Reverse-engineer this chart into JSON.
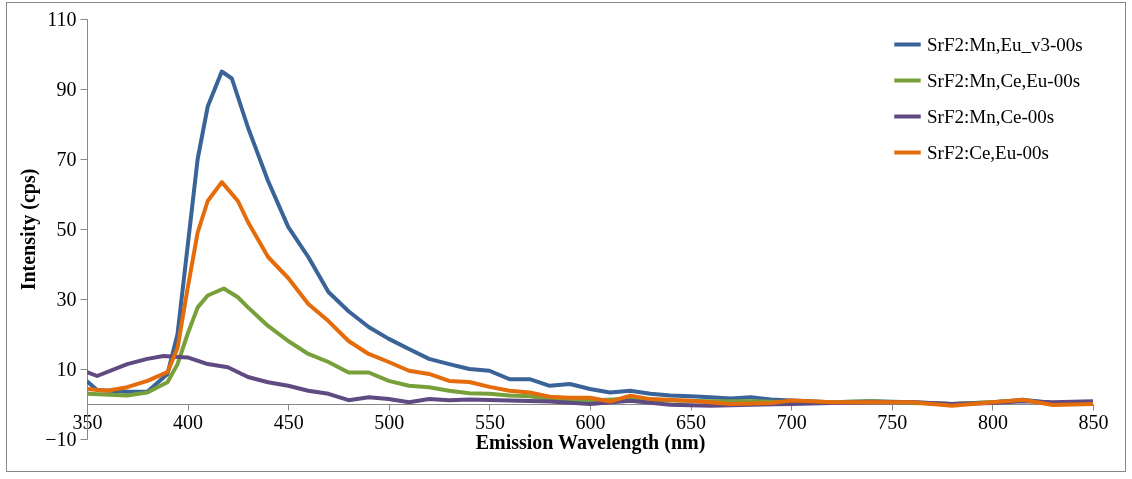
{
  "chart_data": {
    "type": "line",
    "xlabel": "Emission Wavelength (nm)",
    "ylabel": "Intensity (cps)",
    "xlim": [
      350,
      850
    ],
    "xticks": [
      350,
      400,
      450,
      500,
      550,
      600,
      650,
      700,
      750,
      800,
      850
    ],
    "ylim": [
      -10,
      110
    ],
    "yticks": [
      -10,
      10,
      30,
      50,
      70,
      90,
      110
    ],
    "legend": "top right",
    "marker": "none",
    "line_style": "solid",
    "series": [
      {
        "name": "SrF2:Mn,Eu_v3-00s",
        "color": "#3a6398",
        "x": [
          350,
          355,
          370,
          380,
          390,
          395,
          400,
          405,
          410,
          417,
          422,
          430,
          440,
          450,
          460,
          470,
          480,
          490,
          500,
          510,
          520,
          530,
          540,
          550,
          560,
          570,
          580,
          590,
          600,
          610,
          620,
          630,
          640,
          650,
          660,
          670,
          680,
          690,
          700,
          720,
          740,
          760,
          780,
          800,
          815,
          830,
          850
        ],
        "values": [
          6.5,
          4,
          3.5,
          3.5,
          8.6,
          20,
          45,
          70,
          85,
          95,
          93,
          79,
          63.7,
          50.6,
          42,
          32,
          26.5,
          22,
          18.6,
          15.7,
          12.9,
          11.4,
          10,
          9.5,
          7.1,
          7.1,
          5.2,
          5.7,
          4.3,
          3.3,
          3.8,
          2.9,
          2.4,
          2.2,
          1.9,
          1.6,
          1.9,
          1.3,
          1,
          0.5,
          0.8,
          0.5,
          0,
          0.5,
          1.2,
          0.3,
          0.5
        ]
      },
      {
        "name": "SrF2:Mn,Ce,Eu-00s",
        "color": "#77a03b",
        "x": [
          350,
          370,
          380,
          390,
          395,
          400,
          405,
          410,
          418,
          425,
          430,
          440,
          450,
          460,
          470,
          480,
          490,
          500,
          510,
          520,
          530,
          540,
          550,
          560,
          570,
          580,
          600,
          620,
          640,
          660,
          680,
          700,
          720,
          740,
          760,
          780,
          800,
          815
        ],
        "values": [
          2.9,
          2.4,
          3.3,
          6.2,
          11.4,
          20,
          27.6,
          31,
          33,
          30.5,
          27.6,
          22.3,
          18,
          14.3,
          12,
          9,
          9,
          6.6,
          5.2,
          4.8,
          3.8,
          3.1,
          2.9,
          2.4,
          2.2,
          1.4,
          1,
          1.5,
          1,
          0.8,
          0.8,
          0.5,
          0.5,
          0.8,
          0.3,
          0,
          0.5,
          1
        ]
      },
      {
        "name": "SrF2:Mn,Ce-00s",
        "color": "#5f4a82",
        "x": [
          350,
          355,
          370,
          380,
          388,
          400,
          410,
          420,
          430,
          440,
          450,
          460,
          470,
          480,
          490,
          500,
          510,
          520,
          530,
          540,
          560,
          580,
          600,
          620,
          640,
          660,
          680,
          700,
          720,
          740,
          760,
          780,
          800,
          815,
          830,
          850
        ],
        "values": [
          9.1,
          8,
          11.4,
          12.9,
          13.7,
          13.3,
          11.4,
          10.5,
          7.7,
          6.2,
          5.2,
          3.8,
          2.9,
          1.1,
          1.9,
          1.4,
          0.5,
          1.4,
          1.1,
          1.3,
          1,
          0.7,
          0,
          0.9,
          -0.2,
          -0.5,
          -0.2,
          0,
          0.3,
          0.5,
          0.5,
          0,
          0.3,
          0.8,
          0.5,
          0.8
        ]
      },
      {
        "name": "SrF2:Ce,Eu-00s",
        "color": "#e46c0a",
        "x": [
          350,
          360,
          370,
          380,
          390,
          395,
          400,
          405,
          410,
          417,
          425,
          430,
          440,
          450,
          460,
          470,
          480,
          490,
          500,
          510,
          520,
          530,
          540,
          550,
          560,
          570,
          580,
          590,
          600,
          610,
          620,
          630,
          650,
          670,
          690,
          700,
          710,
          720,
          740,
          760,
          780,
          800,
          815,
          830,
          850
        ],
        "values": [
          4.3,
          3.8,
          4.8,
          6.6,
          9.1,
          16,
          33,
          49,
          58,
          63.4,
          58,
          52,
          42,
          36,
          28.6,
          23.7,
          18,
          14.3,
          12,
          9.5,
          8.6,
          6.6,
          6.3,
          4.9,
          3.8,
          3.3,
          2.1,
          1.8,
          1.8,
          0.7,
          2.4,
          1.4,
          0.9,
          0,
          0.3,
          1,
          0.8,
          0.5,
          0.5,
          0.5,
          -0.5,
          0.5,
          1.2,
          -0.3,
          0
        ]
      }
    ]
  }
}
